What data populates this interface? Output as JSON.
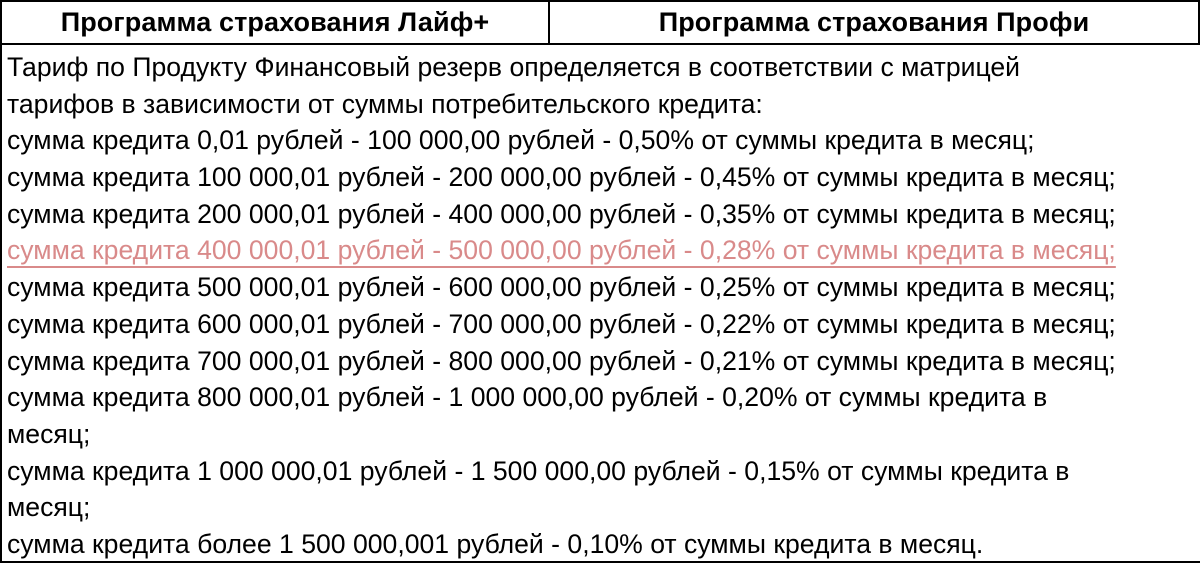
{
  "header": {
    "left_title": "Программа страхования Лайф+",
    "right_title": "Программа страхования Профи"
  },
  "body": {
    "lines": [
      "Тариф по Продукту Финансовый резерв определяется в соответствии с матрицей",
      "тарифов в зависимости от суммы потребительского кредита:",
      "сумма кредита 0,01 рублей - 100 000,00 рублей - 0,50% от суммы кредита в месяц;",
      "сумма кредита 100 000,01 рублей - 200 000,00 рублей - 0,45% от суммы кредита в месяц;",
      "сумма кредита 200 000,01 рублей - 400 000,00 рублей - 0,35% от суммы кредита в месяц;",
      "сумма кредита 400 000,01 рублей - 500 000,00 рублей - 0,28% от суммы кредита в месяц;",
      "сумма кредита 500 000,01 рублей - 600 000,00 рублей - 0,25% от суммы кредита в месяц;",
      "сумма кредита 600 000,01 рублей - 700 000,00 рублей - 0,22% от суммы кредита в месяц;",
      "сумма кредита 700 000,01 рублей - 800 000,00 рублей - 0,21% от суммы кредита в месяц;",
      "сумма кредита 800 000,01 рублей - 1 000 000,00 рублей - 0,20% от суммы кредита в",
      "месяц;",
      "сумма кредита 1 000 000,01 рублей - 1 500 000,00 рублей - 0,15% от суммы кредита в",
      "месяц;",
      "сумма кредита более 1 500 000,001 рублей - 0,10% от суммы кредита в месяц."
    ]
  },
  "colors": {
    "text": "#000000",
    "highlighted_line": "#d98a8a",
    "border": "#000000"
  }
}
